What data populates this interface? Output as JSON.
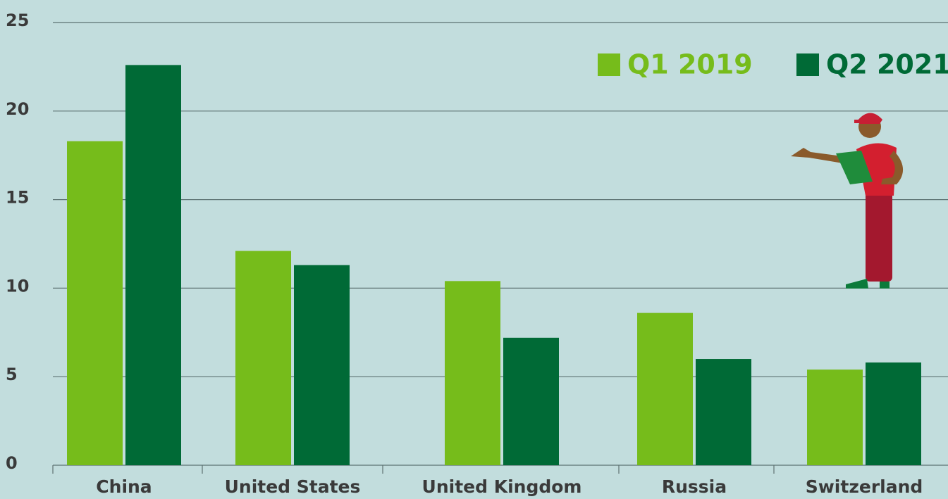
{
  "chart_data": {
    "type": "bar",
    "categories": [
      "China",
      "United States",
      "United Kingdom",
      "Russia",
      "Switzerland"
    ],
    "series": [
      {
        "name": "Q1 2019",
        "color": "#76bc1b",
        "values": [
          18.3,
          12.1,
          10.4,
          8.6,
          5.4
        ]
      },
      {
        "name": "Q2 2021",
        "color": "#006a36",
        "values": [
          22.6,
          11.3,
          7.2,
          6.0,
          5.8
        ]
      }
    ],
    "ylim": [
      0,
      25
    ],
    "yticks": [
      0,
      5,
      10,
      15,
      20,
      25
    ],
    "grid": true,
    "legend": "top-right"
  }
}
